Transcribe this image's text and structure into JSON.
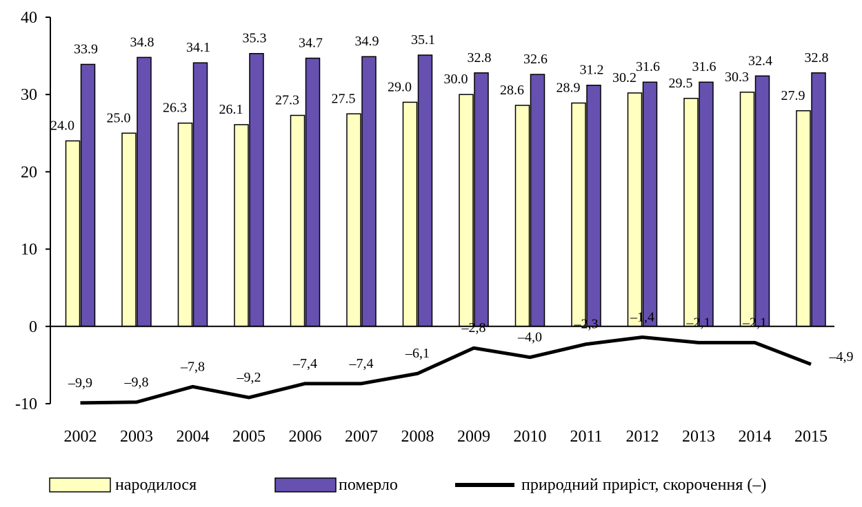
{
  "chart_data": {
    "type": "bar",
    "categories": [
      "2002",
      "2003",
      "2004",
      "2005",
      "2006",
      "2007",
      "2008",
      "2009",
      "2010",
      "2011",
      "2012",
      "2013",
      "2014",
      "2015"
    ],
    "series": [
      {
        "name": "народилося",
        "kind": "bar",
        "color": "#ffffc0",
        "values": [
          24.0,
          25.0,
          26.3,
          26.1,
          27.3,
          27.5,
          29.0,
          30.0,
          28.6,
          28.9,
          30.2,
          29.5,
          30.3,
          27.9
        ],
        "labels": [
          "24.0",
          "25.0",
          "26.3",
          "26.1",
          "27.3",
          "27.5",
          "29.0",
          "30.0",
          "28.6",
          "28.9",
          "30.2",
          "29.5",
          "30.3",
          "27.9"
        ]
      },
      {
        "name": "померло",
        "kind": "bar",
        "color": "#6650b0",
        "values": [
          33.9,
          34.8,
          34.1,
          35.3,
          34.7,
          34.9,
          35.1,
          32.8,
          32.6,
          31.2,
          31.6,
          31.6,
          32.4,
          32.8
        ],
        "labels": [
          "33.9",
          "34.8",
          "34.1",
          "35.3",
          "34.7",
          "34.9",
          "35.1",
          "32.8",
          "32.6",
          "31.2",
          "31.6",
          "31.6",
          "32.4",
          "32.8"
        ]
      },
      {
        "name": "природний приріст, скорочення (–)",
        "kind": "line",
        "color": "#000000",
        "values": [
          -9.9,
          -9.8,
          -7.8,
          -9.2,
          -7.4,
          -7.4,
          -6.1,
          -2.8,
          -4.0,
          -2.3,
          -1.4,
          -2.1,
          -2.1,
          -4.9
        ],
        "labels": [
          "–9,9",
          "–9,8",
          "–7,8",
          "–9,2",
          "–7,4",
          "–7,4",
          "–6,1",
          "–2,8",
          "–4,0",
          "–2,3",
          "–1,4",
          "–2,1",
          "–2,1",
          "–4,9"
        ]
      }
    ],
    "yticks": [
      "-10",
      "0",
      "10",
      "20",
      "30",
      "40"
    ],
    "ylim": [
      -10,
      40
    ],
    "grid": false,
    "legend_position": "bottom"
  }
}
